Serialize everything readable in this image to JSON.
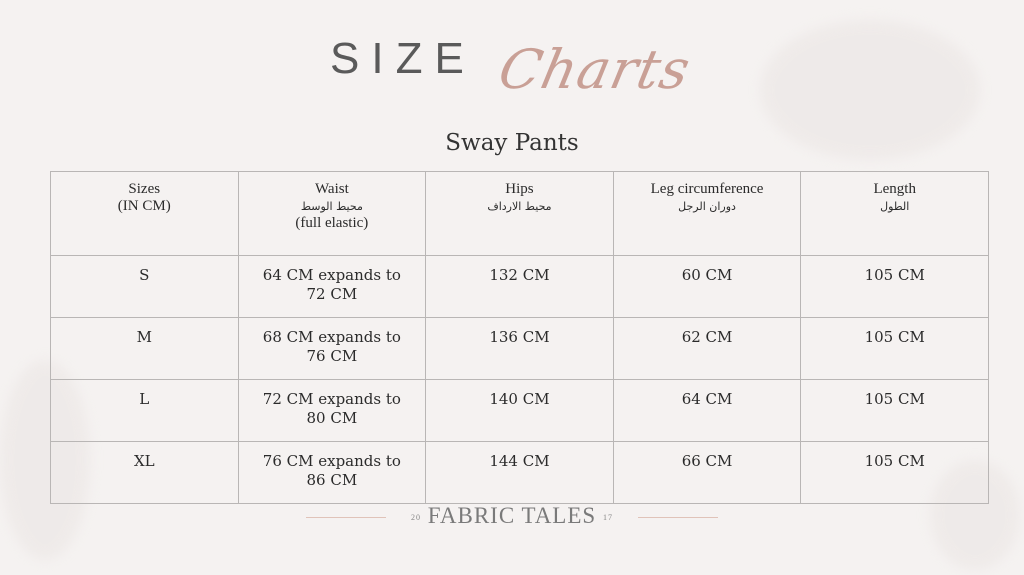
{
  "header": {
    "title_main": "SIZE",
    "title_script": "Charts",
    "subtitle": "Sway Pants"
  },
  "table": {
    "headers": [
      {
        "en": "Sizes",
        "sub": "(IN CM)"
      },
      {
        "en": "Waist",
        "ar": "محيط الوسط",
        "sub": "(full elastic)"
      },
      {
        "en": "Hips",
        "ar": "محيط الارداف"
      },
      {
        "en": "Leg circumference",
        "ar": "دوران الرجل"
      },
      {
        "en": "Length",
        "ar": "الطول"
      }
    ],
    "rows": [
      [
        "S",
        "64 CM expands to 72 CM",
        "132 CM",
        "60 CM",
        "105 CM"
      ],
      [
        "M",
        "68 CM expands to 76 CM",
        "136 CM",
        "62 CM",
        "105 CM"
      ],
      [
        "L",
        "72 CM expands to 80 CM",
        "140 CM",
        "64 CM",
        "105 CM"
      ],
      [
        "XL",
        "76 CM expands to 86 CM",
        "144 CM",
        "66 CM",
        "105 CM"
      ]
    ]
  },
  "footer": {
    "brand": "FABRIC TALES",
    "year_left": "20",
    "year_right": "17"
  },
  "colors": {
    "background": "#f5f2f1",
    "accent": "#c9a096",
    "border": "#b9b6b5"
  }
}
